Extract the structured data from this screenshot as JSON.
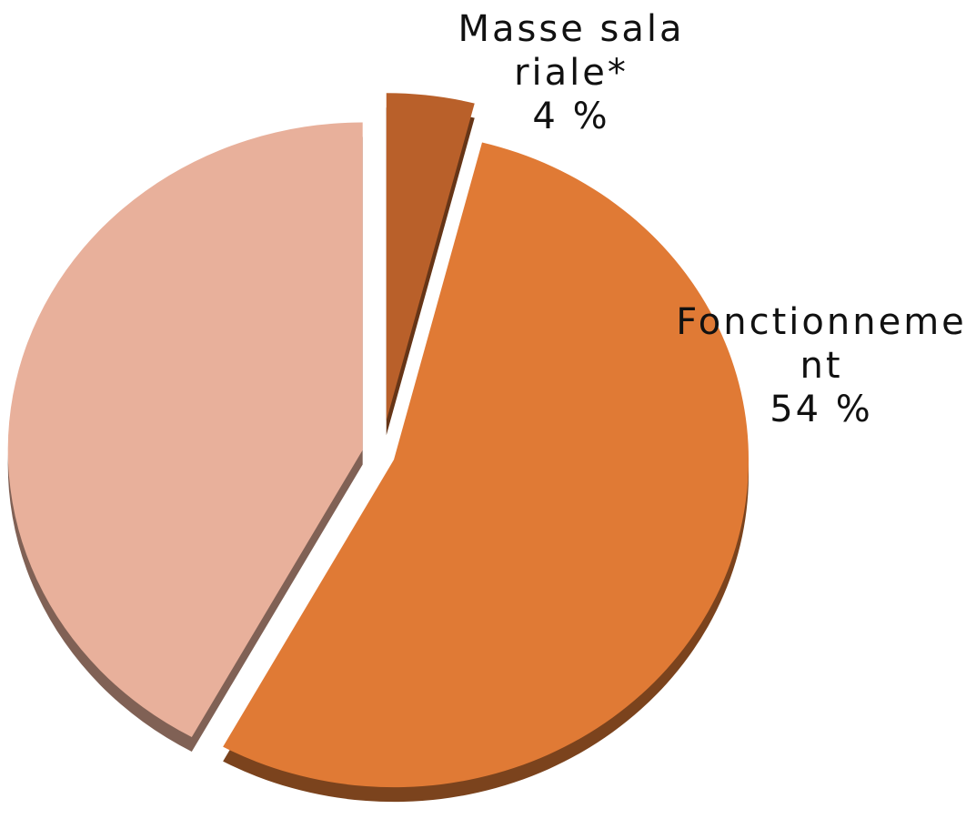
{
  "chart_data": {
    "type": "pie",
    "categories": [
      "Masse salariale*",
      "Fonctionnement",
      null
    ],
    "values": [
      4,
      54,
      42
    ],
    "value_labels": [
      "4 %",
      "54 %",
      null
    ],
    "colors": [
      "#b9602a",
      "#e07a35",
      "#e8b09b"
    ]
  }
}
